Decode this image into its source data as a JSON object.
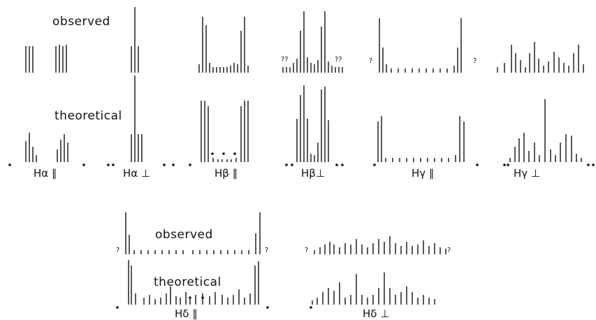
{
  "labels": {
    "observed": "observed",
    "theoretical": "theoretical"
  },
  "groups": {
    "ha_par": "Hα ∥",
    "ha_perp": "Hα ⊥",
    "hb_par": "Hβ ∥",
    "hb_perp": "Hβ⊥",
    "hg_par": "Hγ ∥",
    "hg_perp": "Hγ ⊥",
    "hd_par": "Hδ ∥",
    "hd_perp": "Hδ ⊥"
  },
  "uncertain_mark": "?",
  "double_uncertain_mark": "??"
}
